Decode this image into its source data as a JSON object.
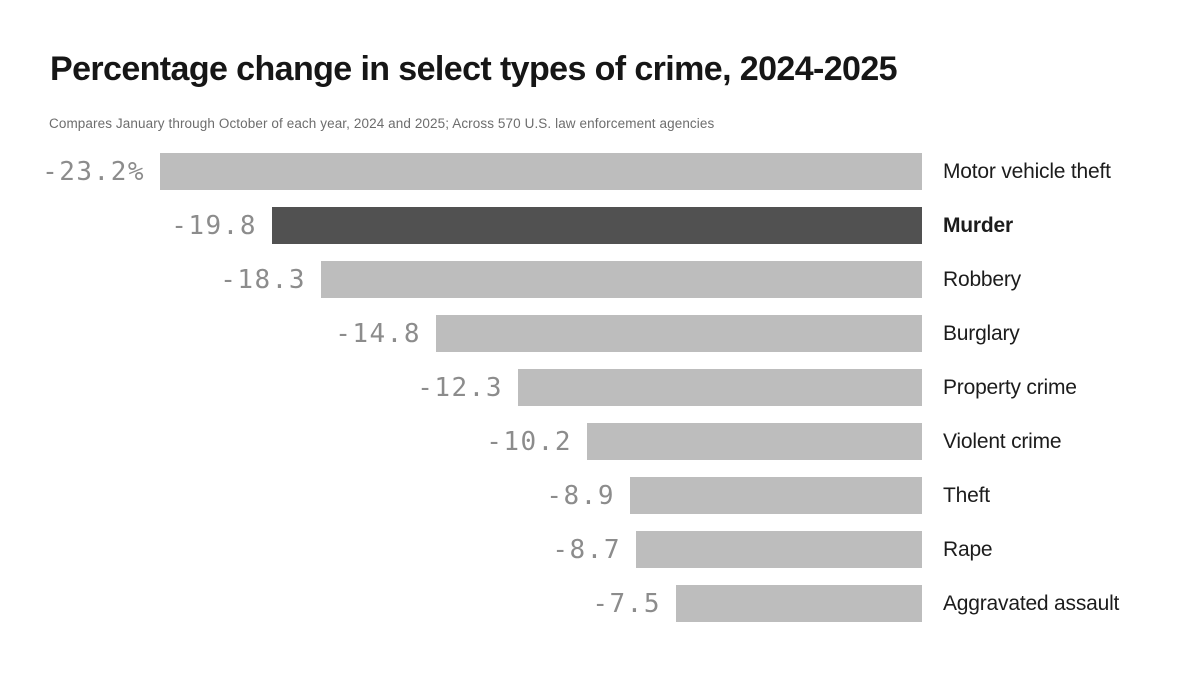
{
  "chart_data": {
    "type": "bar",
    "orientation": "horizontal",
    "title": "Percentage change in select types of crime, 2024-2025",
    "subtitle": "Compares January through October of each year, 2024 and 2025; Across 570 U.S. law enforcement agencies",
    "categories": [
      "Motor vehicle theft",
      "Murder",
      "Robbery",
      "Burglary",
      "Property crime",
      "Violent crime",
      "Theft",
      "Rape",
      "Aggravated assault"
    ],
    "values": [
      -23.2,
      -19.8,
      -18.3,
      -14.8,
      -12.3,
      -10.2,
      -8.9,
      -8.7,
      -7.5
    ],
    "value_labels": [
      "-23.2%",
      "-19.8",
      "-18.3",
      "-14.8",
      "-12.3",
      "-10.2",
      "-8.9",
      "-8.7",
      "-7.5"
    ],
    "highlight_index": 1,
    "highlight_category": "Murder",
    "axis_max_abs": 23.2,
    "bars_right_aligned": true,
    "grid": false,
    "legend": "none",
    "colors": {
      "background": "#ffffff",
      "title": "#161616",
      "subtitle": "#6d6d6d",
      "bar_default": "#bdbdbd",
      "bar_highlight": "#515151",
      "value_label": "#8c8c8c",
      "category_label": "#1c1c1c"
    }
  }
}
